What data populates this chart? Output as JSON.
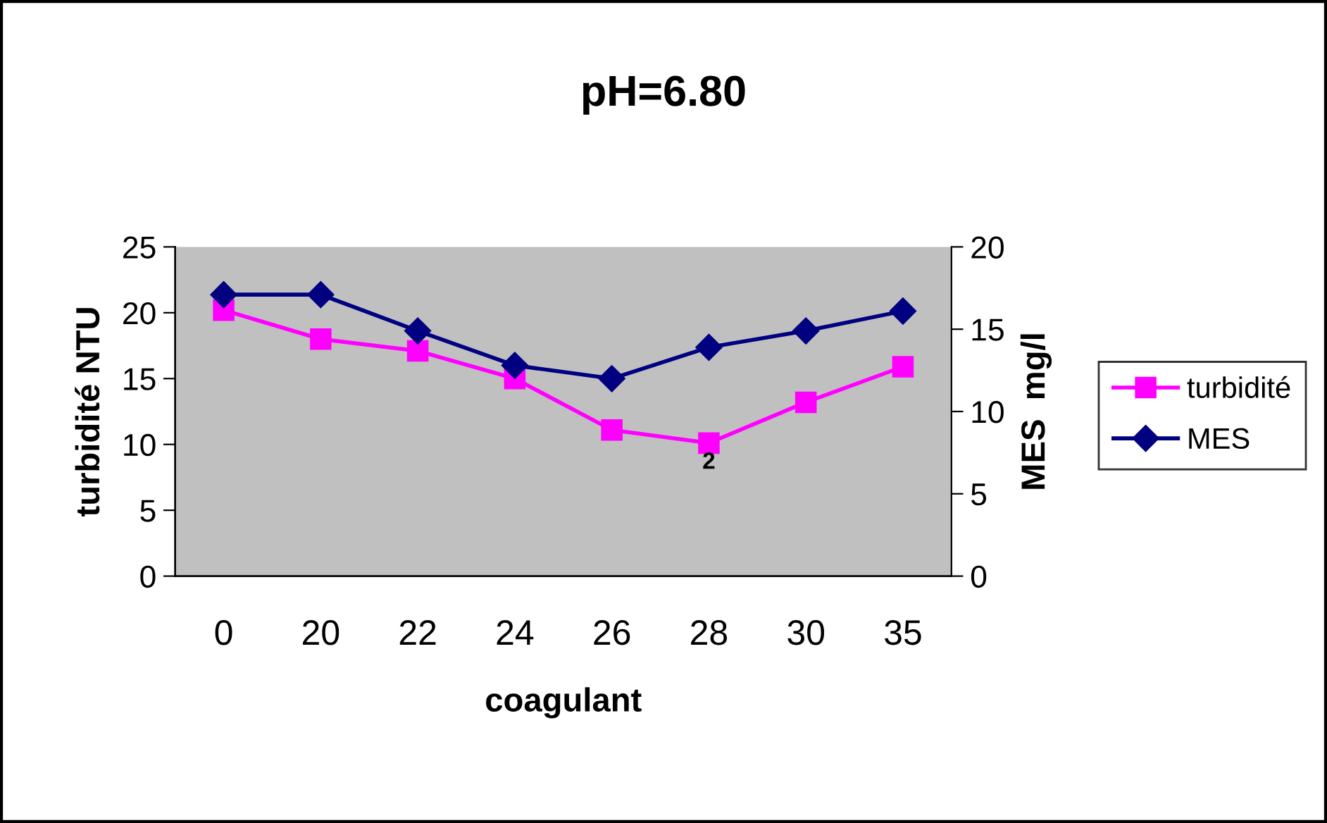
{
  "chart_data": {
    "type": "line",
    "title": "pH=6.80",
    "xlabel": "coagulant",
    "ylabel": "turbidité NTU",
    "y2label": "MES  mg/l",
    "categories": [
      "0",
      "20",
      "22",
      "24",
      "26",
      "28",
      "30",
      "35"
    ],
    "series": [
      {
        "name": "turbidité",
        "color": "#ff00ff",
        "marker": "square",
        "values": [
          20.2,
          18.0,
          17.1,
          15.0,
          11.1,
          10.1,
          13.2,
          15.9
        ]
      },
      {
        "name": "MES",
        "color": "#000080",
        "marker": "diamond",
        "axis": "y2",
        "values": [
          17.1,
          17.1,
          14.9,
          12.8,
          12.0,
          13.9,
          14.9,
          16.1
        ]
      }
    ],
    "ylim": [
      0,
      25
    ],
    "yticks": [
      0,
      5,
      10,
      15,
      20,
      25
    ],
    "y2lim": [
      0,
      20
    ],
    "y2ticks": [
      0,
      5,
      10,
      15,
      20
    ],
    "annotations": [
      {
        "text": "2",
        "x": "28",
        "y": 10.1
      }
    ],
    "grid": false,
    "legend": "right"
  }
}
